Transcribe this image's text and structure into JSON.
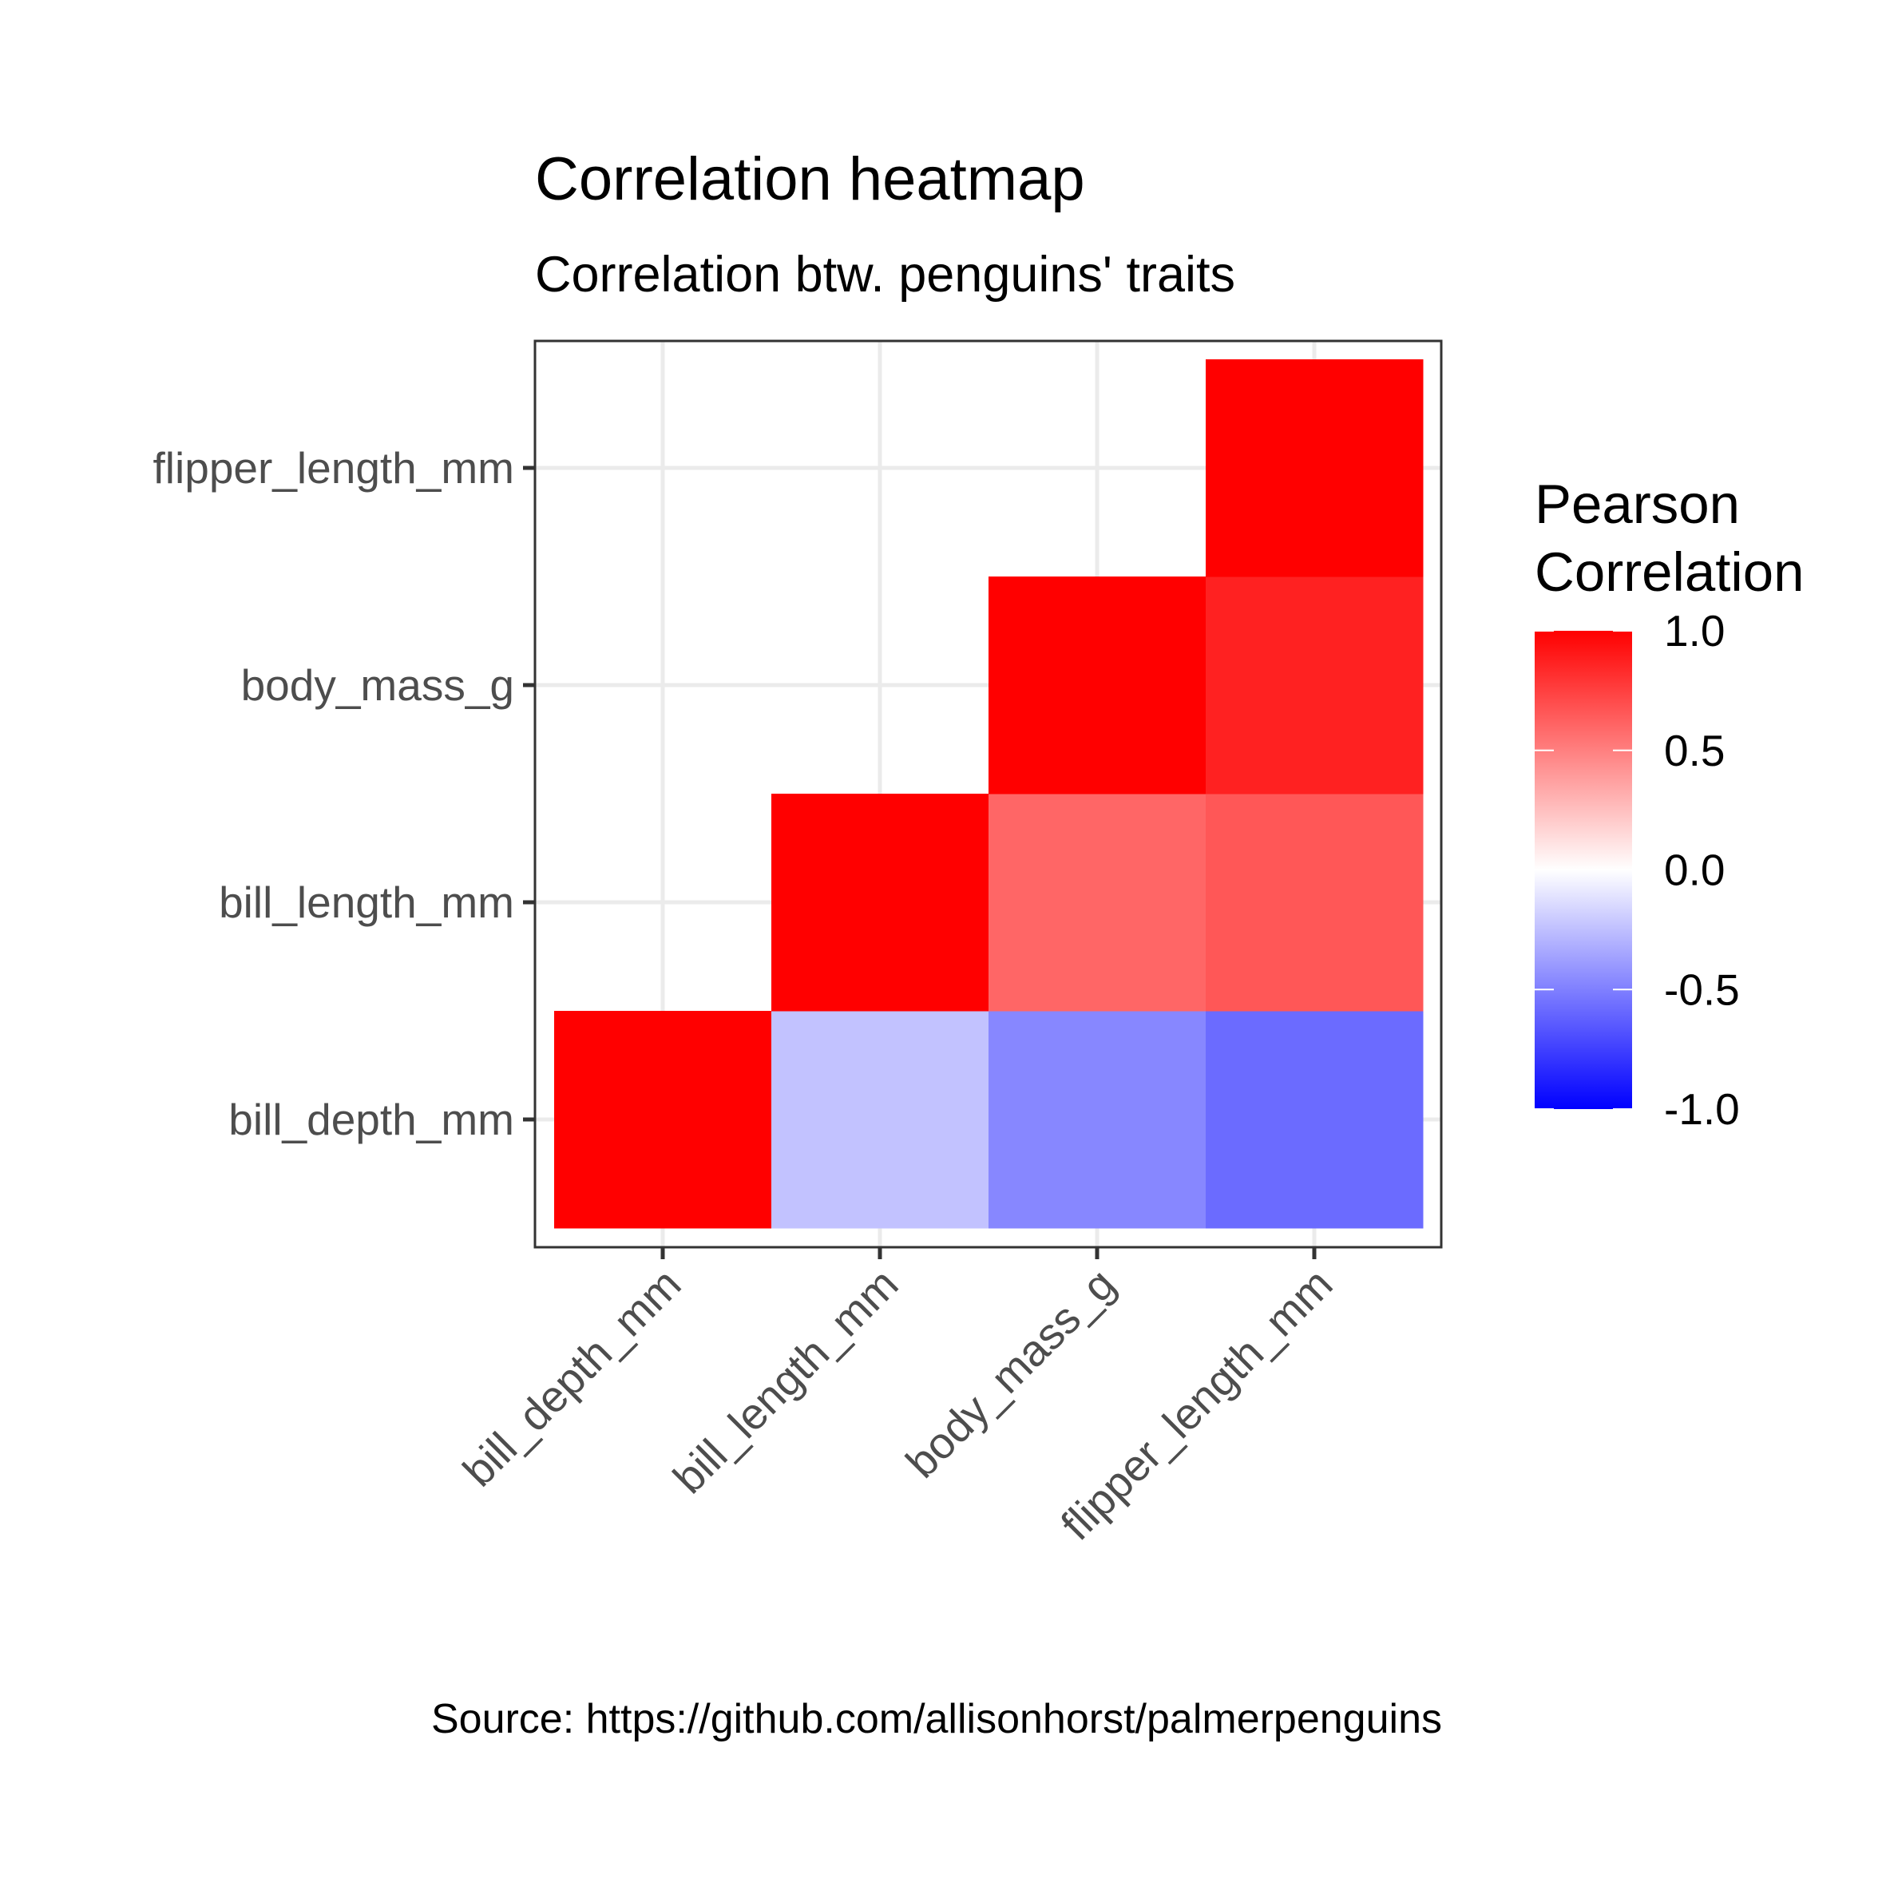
{
  "chart_data": {
    "type": "heatmap",
    "title": "Correlation heatmap",
    "subtitle": "Correlation btw. penguins' traits",
    "caption": "Source: https://github.com/allisonhorst/palmerpenguins",
    "xlabel": "",
    "ylabel": "",
    "x_categories": [
      "bill_depth_mm",
      "bill_length_mm",
      "body_mass_g",
      "flipper_length_mm"
    ],
    "y_categories": [
      "bill_depth_mm",
      "bill_length_mm",
      "body_mass_g",
      "flipper_length_mm"
    ],
    "cells": [
      {
        "x": "bill_depth_mm",
        "y": "bill_depth_mm",
        "value": 1.0
      },
      {
        "x": "bill_length_mm",
        "y": "bill_depth_mm",
        "value": -0.24
      },
      {
        "x": "body_mass_g",
        "y": "bill_depth_mm",
        "value": -0.47
      },
      {
        "x": "flipper_length_mm",
        "y": "bill_depth_mm",
        "value": -0.58
      },
      {
        "x": "bill_length_mm",
        "y": "bill_length_mm",
        "value": 1.0
      },
      {
        "x": "body_mass_g",
        "y": "bill_length_mm",
        "value": 0.6
      },
      {
        "x": "flipper_length_mm",
        "y": "bill_length_mm",
        "value": 0.66
      },
      {
        "x": "body_mass_g",
        "y": "body_mass_g",
        "value": 1.0
      },
      {
        "x": "flipper_length_mm",
        "y": "body_mass_g",
        "value": 0.87
      },
      {
        "x": "flipper_length_mm",
        "y": "flipper_length_mm",
        "value": 1.0
      }
    ],
    "legend": {
      "title_lines": [
        "Pearson",
        "Correlation"
      ],
      "placement": "right",
      "limits": [
        -1.0,
        1.0
      ],
      "breaks": [
        1.0,
        0.5,
        0.0,
        -0.5,
        -1.0
      ],
      "break_labels": [
        "1.0",
        "0.5",
        "0.0",
        "-0.5",
        "-1.0"
      ],
      "low_color": "#0000ff",
      "mid_color": "#ffffff",
      "high_color": "#ff0000"
    },
    "grid": true,
    "theme": "bw"
  }
}
